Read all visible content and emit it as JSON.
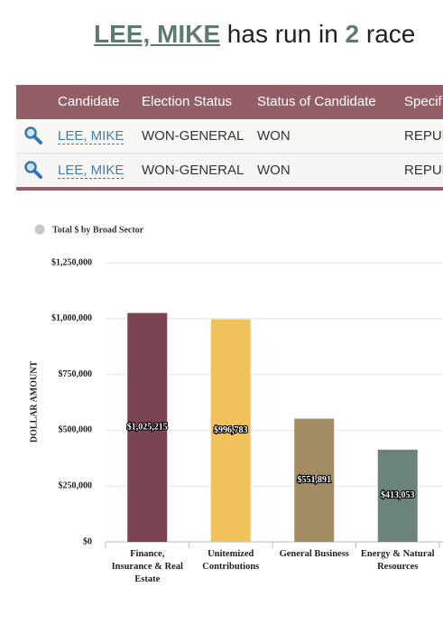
{
  "header": {
    "name": "LEE, MIKE",
    "text1": "has run in",
    "count": "2",
    "text2": "race"
  },
  "table": {
    "columns": [
      "Candidate",
      "Election Status",
      "Status of Candidate",
      "Specif"
    ],
    "rows": [
      [
        "LEE, MIKE",
        "WON-GENERAL",
        "WON",
        "REPUB"
      ],
      [
        "LEE, MIKE",
        "WON-GENERAL",
        "WON",
        "REPUB"
      ]
    ]
  },
  "chart_data": {
    "type": "bar",
    "legend": "Total $ by Broad Sector",
    "ylabel": "DOLLAR AMOUNT",
    "categories": [
      "Finance, Insurance & Real Estate",
      "Unitemized Contributions",
      "General Business",
      "Energy & Natural Resources"
    ],
    "values": [
      1025215,
      996783,
      551891,
      413053
    ],
    "value_labels": [
      "$1,025,215",
      "$996,783",
      "$551,891",
      "$413,053"
    ],
    "colors": [
      "#7b4450",
      "#f2c25a",
      "#a38b63",
      "#6a8479"
    ],
    "ylim": [
      0,
      1250000
    ],
    "yticks": [
      {
        "value": 0,
        "label": "$0"
      },
      {
        "value": 250000,
        "label": "$250,000"
      },
      {
        "value": 500000,
        "label": "$500,000"
      },
      {
        "value": 750000,
        "label": "$750,000"
      },
      {
        "value": 1000000,
        "label": "$1,000,000"
      },
      {
        "value": 1250000,
        "label": "$1,250,000"
      }
    ],
    "grid": true
  }
}
